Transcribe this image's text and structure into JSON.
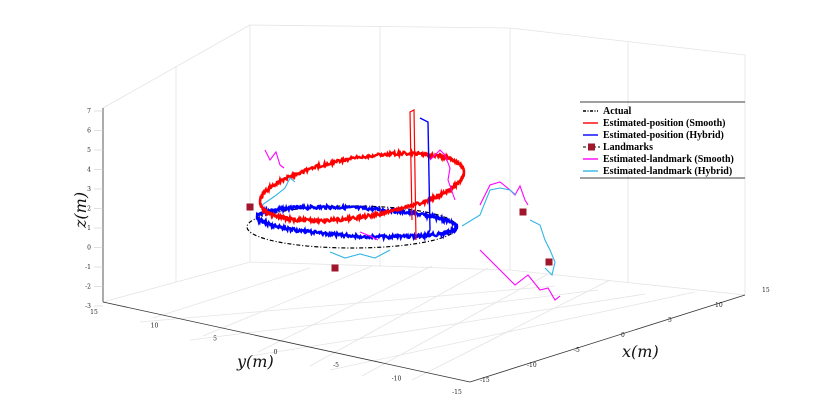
{
  "chart_data": {
    "type": "line",
    "view": "3d",
    "xlabel": "x(m)",
    "ylabel": "y(m)",
    "zlabel": "z(m)",
    "xlim": [
      -15,
      15
    ],
    "ylim": [
      -15,
      15
    ],
    "zlim": [
      -3,
      7
    ],
    "x_ticks": [
      "-15",
      "-10",
      "-5",
      "0",
      "5",
      "10",
      "15"
    ],
    "y_ticks": [
      "15",
      "10",
      "5",
      "0",
      "-5",
      "-10",
      "-15"
    ],
    "z_ticks": [
      "7",
      "6",
      "5",
      "4",
      "3",
      "2",
      "1",
      "0",
      "-1",
      "-2",
      "-3"
    ],
    "grid": true,
    "legend_position": "top-right",
    "series": [
      {
        "name": "Actual",
        "color": "#000000",
        "style": "dash-dot",
        "shape": "ellipse",
        "center": [
          0,
          0,
          0
        ],
        "radius": 10,
        "z": 0
      },
      {
        "name": "Estimated-position (Smooth)",
        "color": "#ff0000",
        "style": "solid",
        "shape": "tilted-ellipse",
        "radius": 10,
        "z_range": [
          1,
          4
        ]
      },
      {
        "name": "Estimated-position (Hybrid)",
        "color": "#0000ff",
        "style": "solid",
        "shape": "ellipse",
        "radius": 10,
        "z": 1
      },
      {
        "name": "Landmarks",
        "color": "#a0162b",
        "style": "square-marker",
        "points": [
          [
            -12,
            10,
            2
          ],
          [
            -5,
            5,
            0
          ],
          [
            12,
            -8,
            2
          ],
          [
            10,
            -12,
            0
          ]
        ]
      },
      {
        "name": "Estimated-landmark (Smooth)",
        "color": "#ff00ff",
        "style": "solid"
      },
      {
        "name": "Estimated-landmark (Hybrid)",
        "color": "#33b5e5",
        "style": "solid"
      }
    ]
  }
}
